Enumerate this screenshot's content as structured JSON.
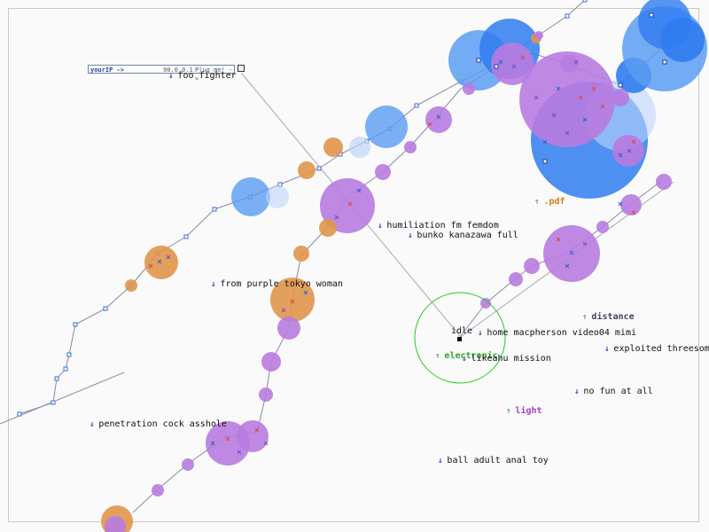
{
  "ip_panel": {
    "key_label": "yourIP ->",
    "ip_value": "90.0.0.1",
    "plug_label": "Plug me! ->"
  },
  "status": {
    "idle_label": "idle"
  },
  "labels": [
    {
      "text": "foo fighter",
      "dir": "down",
      "bold": false,
      "color": "#111111"
    },
    {
      "text": ".pdf",
      "dir": "up",
      "bold": true,
      "color": "#d97b1a"
    },
    {
      "text": "humiliation fm femdom",
      "dir": "down",
      "bold": false,
      "color": "#111111"
    },
    {
      "text": "bunko kanazawa full",
      "dir": "down",
      "bold": false,
      "color": "#111111"
    },
    {
      "text": "from purple tokyo woman",
      "dir": "down",
      "bold": false,
      "color": "#111111"
    },
    {
      "text": "distance",
      "dir": "up",
      "bold": true,
      "color": "#444466"
    },
    {
      "text": "home macpherson video04 mimi",
      "dir": "down",
      "bold": false,
      "color": "#111111"
    },
    {
      "text": "exploited threesome from",
      "dir": "down",
      "bold": false,
      "color": "#111111"
    },
    {
      "text": "electronic",
      "dir": "up",
      "bold": true,
      "color": "#2ea62e"
    },
    {
      "text": "likeahu mission",
      "dir": "down",
      "bold": false,
      "color": "#111111"
    },
    {
      "text": "no fun at all",
      "dir": "down",
      "bold": false,
      "color": "#111111"
    },
    {
      "text": "light",
      "dir": "up",
      "bold": true,
      "color": "#a13fc9"
    },
    {
      "text": "penetration cock asshole",
      "dir": "down",
      "bold": false,
      "color": "#111111"
    },
    {
      "text": "ball adult anal toy",
      "dir": "down",
      "bold": false,
      "color": "#111111"
    }
  ],
  "colors": {
    "purple": "#b87be0",
    "orange": "#e0954a",
    "blue": "#5a9cf2",
    "deep_blue": "#2f7cf0",
    "light_blue": "#bcd6fb",
    "line": "#8a8aa8",
    "ring": "#22cc22",
    "frame": "#c8c8c8"
  },
  "icons": {
    "down_arrow": "download-arrow-icon",
    "up_arrow": "upload-arrow-icon"
  }
}
